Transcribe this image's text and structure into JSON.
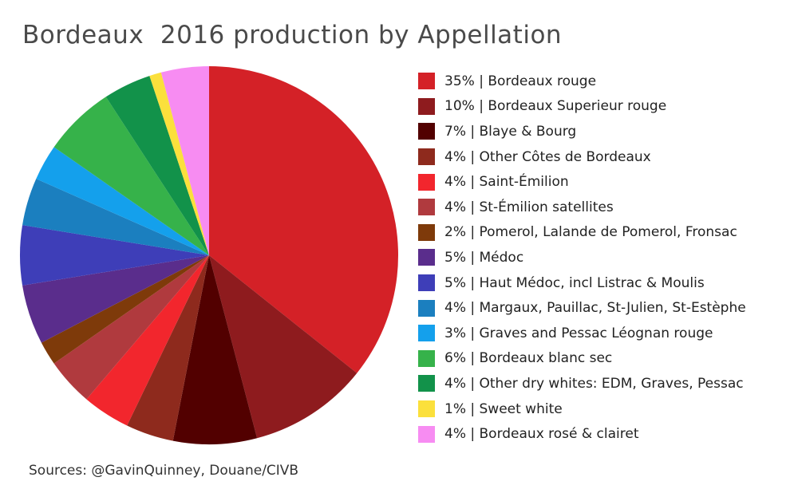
{
  "title": "Bordeaux  2016 production by Appellation",
  "source": "Sources: @GavinQuinney, Douane/CIVB",
  "chart_data": {
    "type": "pie",
    "title": "Bordeaux  2016 production by Appellation",
    "legend_position": "right",
    "slices": [
      {
        "value": 35,
        "label": "35% | Bordeaux rouge",
        "color": "#d42127"
      },
      {
        "value": 10,
        "label": "10% | Bordeaux Superieur rouge",
        "color": "#8e1b1e"
      },
      {
        "value": 7,
        "label": "7% | Blaye & Bourg",
        "color": "#520000"
      },
      {
        "value": 4,
        "label": "4% | Other Côtes de Bordeaux",
        "color": "#8e2a1d"
      },
      {
        "value": 4,
        "label": "4% | Saint-Émilion",
        "color": "#f2262d"
      },
      {
        "value": 4,
        "label": "4% | St-Émilion satellites",
        "color": "#b03a3e"
      },
      {
        "value": 2,
        "label": "2% | Pomerol, Lalande de Pomerol, Fronsac",
        "color": "#7e3a0a"
      },
      {
        "value": 5,
        "label": "5% | Médoc",
        "color": "#5a2d8c"
      },
      {
        "value": 5,
        "label": "5% | Haut Médoc, incl Listrac & Moulis",
        "color": "#3e3eb8"
      },
      {
        "value": 4,
        "label": "4% | Margaux, Pauillac, St-Julien, St-Estèphe",
        "color": "#1b7fbf"
      },
      {
        "value": 3,
        "label": "3% | Graves and Pessac Léognan rouge",
        "color": "#14a0ec"
      },
      {
        "value": 6,
        "label": "6% | Bordeaux blanc sec",
        "color": "#36b24a"
      },
      {
        "value": 4,
        "label": "4% | Other dry whites: EDM, Graves, Pessac",
        "color": "#12924a"
      },
      {
        "value": 1,
        "label": "1% | Sweet white",
        "color": "#fbe03c"
      },
      {
        "value": 4,
        "label": "4% | Bordeaux rosé & clairet",
        "color": "#f78cf2"
      }
    ]
  }
}
